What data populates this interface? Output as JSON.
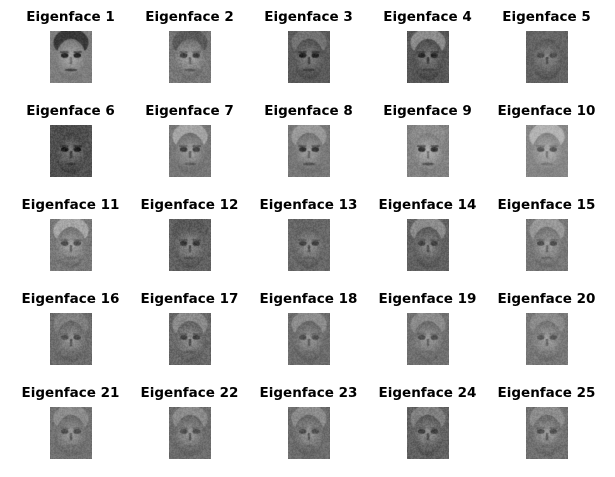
{
  "figure": {
    "panels": [
      {
        "title": "Eigenface 1",
        "tone": 0.58,
        "eyes": 0.15,
        "hair": 0.22,
        "contrast": 0.45,
        "seed": 1
      },
      {
        "title": "Eigenface 2",
        "tone": 0.55,
        "eyes": 0.25,
        "hair": 0.35,
        "contrast": 0.55,
        "seed": 2
      },
      {
        "title": "Eigenface 3",
        "tone": 0.42,
        "eyes": 0.12,
        "hair": 0.45,
        "contrast": 0.5,
        "seed": 3
      },
      {
        "title": "Eigenface 4",
        "tone": 0.4,
        "eyes": 0.15,
        "hair": 0.55,
        "contrast": 0.55,
        "seed": 4
      },
      {
        "title": "Eigenface 5",
        "tone": 0.45,
        "eyes": 0.3,
        "hair": 0.4,
        "contrast": 0.5,
        "seed": 5
      },
      {
        "title": "Eigenface 6",
        "tone": 0.38,
        "eyes": 0.1,
        "hair": 0.3,
        "contrast": 0.6,
        "seed": 6
      },
      {
        "title": "Eigenface 7",
        "tone": 0.55,
        "eyes": 0.25,
        "hair": 0.65,
        "contrast": 0.45,
        "seed": 7
      },
      {
        "title": "Eigenface 8",
        "tone": 0.55,
        "eyes": 0.2,
        "hair": 0.6,
        "contrast": 0.45,
        "seed": 8
      },
      {
        "title": "Eigenface 9",
        "tone": 0.6,
        "eyes": 0.2,
        "hair": 0.55,
        "contrast": 0.5,
        "seed": 9
      },
      {
        "title": "Eigenface 10",
        "tone": 0.62,
        "eyes": 0.35,
        "hair": 0.7,
        "contrast": 0.4,
        "seed": 10
      },
      {
        "title": "Eigenface 11",
        "tone": 0.55,
        "eyes": 0.3,
        "hair": 0.65,
        "contrast": 0.55,
        "seed": 11
      },
      {
        "title": "Eigenface 12",
        "tone": 0.45,
        "eyes": 0.2,
        "hair": 0.35,
        "contrast": 0.6,
        "seed": 12
      },
      {
        "title": "Eigenface 13",
        "tone": 0.48,
        "eyes": 0.25,
        "hair": 0.4,
        "contrast": 0.55,
        "seed": 13
      },
      {
        "title": "Eigenface 14",
        "tone": 0.45,
        "eyes": 0.25,
        "hair": 0.55,
        "contrast": 0.55,
        "seed": 14
      },
      {
        "title": "Eigenface 15",
        "tone": 0.55,
        "eyes": 0.3,
        "hair": 0.6,
        "contrast": 0.5,
        "seed": 15
      },
      {
        "title": "Eigenface 16",
        "tone": 0.5,
        "eyes": 0.3,
        "hair": 0.5,
        "contrast": 0.55,
        "seed": 16
      },
      {
        "title": "Eigenface 17",
        "tone": 0.48,
        "eyes": 0.25,
        "hair": 0.55,
        "contrast": 0.6,
        "seed": 17
      },
      {
        "title": "Eigenface 18",
        "tone": 0.5,
        "eyes": 0.3,
        "hair": 0.55,
        "contrast": 0.5,
        "seed": 18
      },
      {
        "title": "Eigenface 19",
        "tone": 0.52,
        "eyes": 0.3,
        "hair": 0.55,
        "contrast": 0.5,
        "seed": 19
      },
      {
        "title": "Eigenface 20",
        "tone": 0.55,
        "eyes": 0.35,
        "hair": 0.55,
        "contrast": 0.5,
        "seed": 20
      },
      {
        "title": "Eigenface 21",
        "tone": 0.52,
        "eyes": 0.3,
        "hair": 0.55,
        "contrast": 0.5,
        "seed": 21
      },
      {
        "title": "Eigenface 22",
        "tone": 0.5,
        "eyes": 0.3,
        "hair": 0.55,
        "contrast": 0.55,
        "seed": 22
      },
      {
        "title": "Eigenface 23",
        "tone": 0.5,
        "eyes": 0.3,
        "hair": 0.55,
        "contrast": 0.55,
        "seed": 23
      },
      {
        "title": "Eigenface 24",
        "tone": 0.45,
        "eyes": 0.25,
        "hair": 0.5,
        "contrast": 0.6,
        "seed": 24
      },
      {
        "title": "Eigenface 25",
        "tone": 0.52,
        "eyes": 0.3,
        "hair": 0.55,
        "contrast": 0.55,
        "seed": 25
      }
    ]
  }
}
